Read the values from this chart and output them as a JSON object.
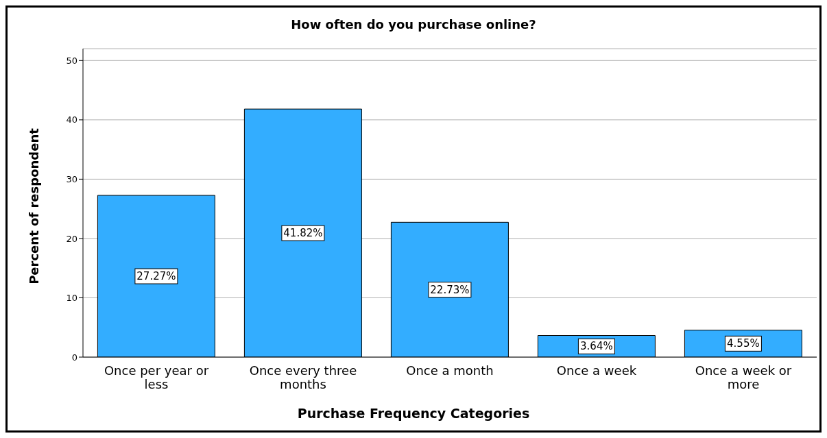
{
  "chart_data": {
    "type": "bar",
    "title": "How often do you purchase online?",
    "xlabel": "Purchase Frequency Categories",
    "ylabel": "Percent of respondent",
    "categories": [
      "Once per year or less",
      "Once every three months",
      "Once a month",
      "Once a week",
      "Once a week or more"
    ],
    "values": [
      27.27,
      41.82,
      22.73,
      3.64,
      4.55
    ],
    "value_labels": [
      "27.27%",
      "41.82%",
      "22.73%",
      "3.64%",
      "4.55%"
    ],
    "color": "#33adff",
    "ylim": [
      0,
      52
    ],
    "yticks": [
      0,
      10,
      20,
      30,
      40,
      50
    ],
    "grid": "y",
    "legend": false
  }
}
